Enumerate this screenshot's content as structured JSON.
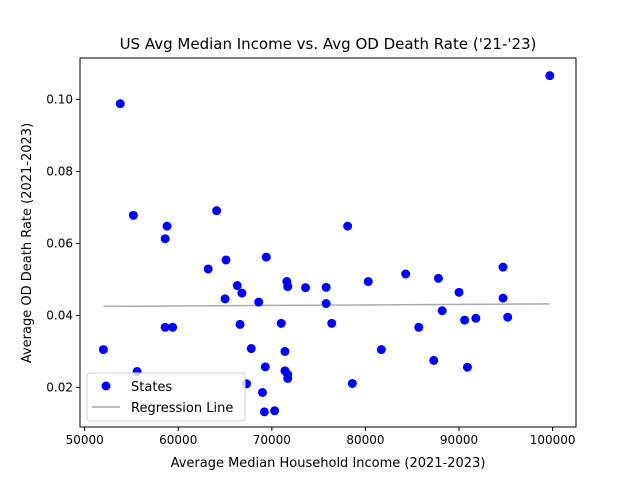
{
  "chart_data": {
    "type": "scatter",
    "title": "US Avg Median Income vs. Avg OD Death Rate ('21-'23)",
    "xlabel": "Average Median Household Income (2021-2023)",
    "ylabel": "Average OD Death Rate (2021-2023)",
    "xlim": [
      49500,
      102500
    ],
    "ylim": [
      0.009,
      0.1115
    ],
    "xticks": [
      50000,
      60000,
      70000,
      80000,
      90000,
      100000
    ],
    "xtick_labels": [
      "50000",
      "60000",
      "70000",
      "80000",
      "90000",
      "100000"
    ],
    "yticks": [
      0.02,
      0.04,
      0.06,
      0.08,
      0.1
    ],
    "ytick_labels": [
      "0.02",
      "0.04",
      "0.06",
      "0.08",
      "0.10"
    ],
    "grid": false,
    "legend_position": "lower-left",
    "series": [
      {
        "name": "States",
        "kind": "scatter",
        "color": "#0000ff",
        "points": [
          [
            52000,
            0.0305
          ],
          [
            53800,
            0.0988
          ],
          [
            55200,
            0.0678
          ],
          [
            55600,
            0.0244
          ],
          [
            58600,
            0.0367
          ],
          [
            58600,
            0.0613
          ],
          [
            58800,
            0.0648
          ],
          [
            59400,
            0.0367
          ],
          [
            63200,
            0.0529
          ],
          [
            64100,
            0.0691
          ],
          [
            65000,
            0.0446
          ],
          [
            65100,
            0.0554
          ],
          [
            66300,
            0.0483
          ],
          [
            66600,
            0.0375
          ],
          [
            66800,
            0.0462
          ],
          [
            67300,
            0.021
          ],
          [
            67800,
            0.0308
          ],
          [
            68600,
            0.0437
          ],
          [
            69000,
            0.0186
          ],
          [
            69200,
            0.0132
          ],
          [
            69300,
            0.0257
          ],
          [
            69400,
            0.0562
          ],
          [
            70300,
            0.0135
          ],
          [
            71000,
            0.0378
          ],
          [
            71400,
            0.03
          ],
          [
            71400,
            0.0246
          ],
          [
            71600,
            0.0494
          ],
          [
            71700,
            0.048
          ],
          [
            71700,
            0.0236
          ],
          [
            71700,
            0.0225
          ],
          [
            73600,
            0.0477
          ],
          [
            75800,
            0.0478
          ],
          [
            75800,
            0.0433
          ],
          [
            76400,
            0.0378
          ],
          [
            78100,
            0.0648
          ],
          [
            78600,
            0.0211
          ],
          [
            80300,
            0.0494
          ],
          [
            81700,
            0.0305
          ],
          [
            84300,
            0.0515
          ],
          [
            85700,
            0.0367
          ],
          [
            87300,
            0.0275
          ],
          [
            87800,
            0.0503
          ],
          [
            88200,
            0.0413
          ],
          [
            90000,
            0.0464
          ],
          [
            90600,
            0.0387
          ],
          [
            90900,
            0.0256
          ],
          [
            91800,
            0.0392
          ],
          [
            94700,
            0.0448
          ],
          [
            94700,
            0.0534
          ],
          [
            95200,
            0.0395
          ],
          [
            99700,
            0.1066
          ]
        ]
      },
      {
        "name": "Regression Line",
        "kind": "line",
        "color": "#aaaaaa",
        "x": [
          52000,
          99700
        ],
        "y": [
          0.0425,
          0.0432
        ]
      }
    ]
  }
}
